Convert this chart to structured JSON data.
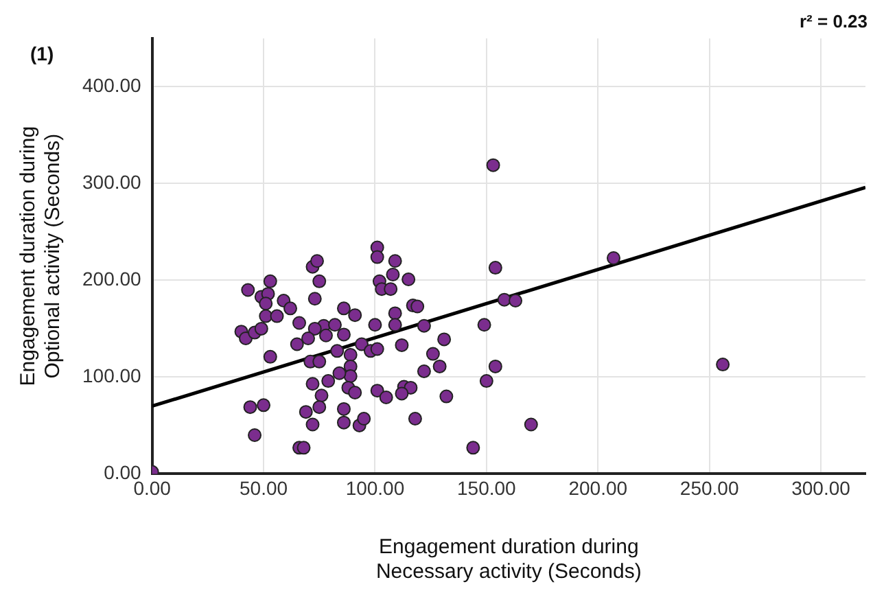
{
  "chart_data": {
    "type": "scatter",
    "xlabel": "Engagement duration during Necessary activity (Seconds)",
    "ylabel": "Engagement duration during Optional activity (Seconds)",
    "annotations": [
      "(1)",
      "r² = 0.23"
    ],
    "xlim": [
      0,
      320
    ],
    "ylim": [
      0,
      450
    ],
    "xticks": [
      {
        "value": 0,
        "label": "0.00"
      },
      {
        "value": 50,
        "label": "50.00"
      },
      {
        "value": 100,
        "label": "100.00"
      },
      {
        "value": 150,
        "label": "150.00"
      },
      {
        "value": 200,
        "label": "200.00"
      },
      {
        "value": 250,
        "label": "250.00"
      },
      {
        "value": 300,
        "label": "300.00"
      }
    ],
    "yticks": [
      {
        "value": 0,
        "label": "0.00"
      },
      {
        "value": 100,
        "label": "100.00"
      },
      {
        "value": 200,
        "label": "200.00"
      },
      {
        "value": 300,
        "label": "300.00"
      },
      {
        "value": 400,
        "label": "400.00"
      }
    ],
    "grid": true,
    "legend": false,
    "series": [
      {
        "marker": "circle",
        "color": "#7b2d8e",
        "x": [
          43,
          53,
          49,
          52,
          51,
          51,
          56,
          59,
          62,
          40,
          42,
          46,
          49,
          53,
          44,
          50,
          46,
          0,
          66,
          153,
          154,
          101,
          101,
          109,
          108,
          115,
          102,
          103,
          107,
          72,
          74,
          75,
          73,
          86,
          91,
          66,
          77,
          82,
          73,
          70,
          78,
          86,
          65,
          94,
          100,
          109,
          109,
          117,
          119,
          122,
          158,
          163,
          149,
          83,
          89,
          98,
          101,
          112,
          131,
          126,
          129,
          122,
          71,
          75,
          89,
          89,
          84,
          79,
          72,
          88,
          91,
          101,
          105,
          113,
          116,
          112,
          132,
          154,
          150,
          76,
          75,
          69,
          72,
          86,
          86,
          93,
          95,
          118,
          170,
          68,
          144,
          207,
          256
        ],
        "values": [
          190,
          199,
          183,
          186,
          176,
          163,
          163,
          179,
          171,
          147,
          140,
          146,
          150,
          121,
          69,
          71,
          40,
          2,
          27,
          319,
          213,
          234,
          224,
          220,
          206,
          201,
          199,
          191,
          191,
          214,
          220,
          199,
          181,
          171,
          164,
          156,
          153,
          154,
          150,
          140,
          143,
          144,
          134,
          134,
          154,
          166,
          154,
          174,
          173,
          153,
          180,
          179,
          154,
          127,
          123,
          127,
          129,
          133,
          139,
          124,
          111,
          106,
          116,
          116,
          111,
          101,
          104,
          96,
          93,
          89,
          84,
          86,
          79,
          90,
          89,
          83,
          80,
          111,
          96,
          81,
          69,
          64,
          51,
          67,
          53,
          50,
          57,
          57,
          51,
          27,
          27,
          223,
          113
        ]
      },
      {
        "type": "line",
        "color": "#000000",
        "x": [
          0,
          320
        ],
        "values": [
          70,
          296
        ]
      }
    ]
  }
}
